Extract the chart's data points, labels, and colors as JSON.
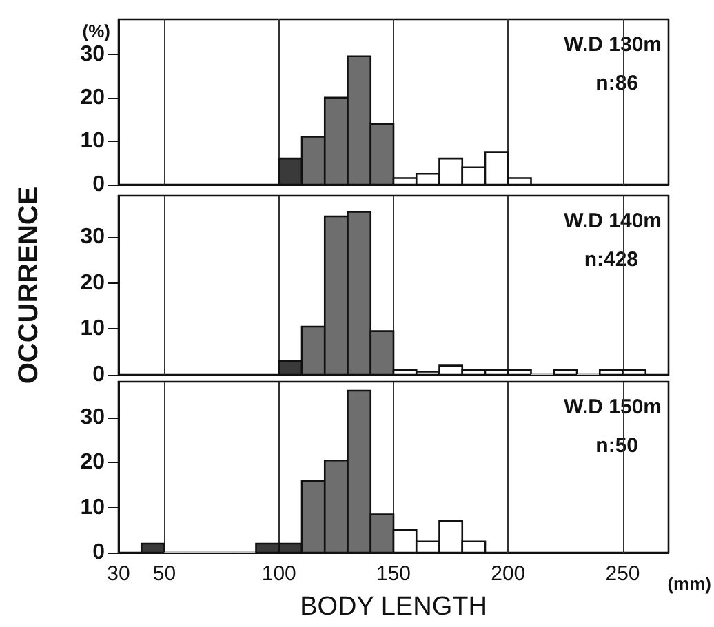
{
  "chart_data": [
    {
      "type": "histogram",
      "ylabel": "(%)",
      "bins": [
        100,
        110,
        120,
        130,
        140,
        150,
        160,
        170,
        180,
        190,
        200,
        210
      ],
      "values": [
        6,
        11,
        20,
        29.5,
        14,
        1.5,
        2.5,
        6,
        4,
        7.5,
        1.5
      ],
      "colors": [
        "#3a3a3a",
        "#6e6e6e",
        "#6e6e6e",
        "#6e6e6e",
        "#6e6e6e",
        "#ffffff",
        "#ffffff",
        "#ffffff",
        "#ffffff",
        "#ffffff",
        "#ffffff"
      ],
      "xlim": [
        30,
        270
      ],
      "xticks": [
        30,
        50,
        100,
        150,
        200,
        250
      ],
      "ylim": [
        0,
        38
      ],
      "yticks": [
        0,
        10,
        20,
        30
      ],
      "grid": "x",
      "tick_labels": "y",
      "annotations": [
        "W.D 130m",
        "n:86"
      ]
    },
    {
      "type": "histogram",
      "ylabel": "OCCURRENCE",
      "bins": [
        100,
        110,
        120,
        130,
        140,
        150,
        160,
        170,
        180,
        190,
        200,
        210,
        220,
        230,
        240,
        250,
        260
      ],
      "values": [
        3,
        10.5,
        34.5,
        35.5,
        9.5,
        1,
        0.7,
        2,
        1,
        1,
        1,
        0,
        1,
        0,
        1,
        1
      ],
      "colors": [
        "#3a3a3a",
        "#6e6e6e",
        "#6e6e6e",
        "#6e6e6e",
        "#6e6e6e",
        "#ffffff",
        "#ffffff",
        "#ffffff",
        "#ffffff",
        "#ffffff",
        "#ffffff",
        "#ffffff",
        "#ffffff",
        "#ffffff",
        "#ffffff",
        "#ffffff"
      ],
      "xlim": [
        30,
        270
      ],
      "xticks": [
        30,
        50,
        100,
        150,
        200,
        250
      ],
      "ylim": [
        0,
        39
      ],
      "yticks": [
        0,
        10,
        20,
        30
      ],
      "grid": "x",
      "tick_labels": "y",
      "annotations": [
        "W.D 140m",
        "n:428"
      ]
    },
    {
      "type": "histogram",
      "xlabel": "BODY LENGTH",
      "bins": [
        40,
        50,
        60,
        70,
        80,
        90,
        100,
        110,
        120,
        130,
        140,
        150,
        160,
        170,
        180,
        190
      ],
      "values": [
        2,
        0,
        0,
        0,
        0,
        2,
        2,
        16,
        20.5,
        36,
        8.5,
        5,
        2.5,
        7,
        2.5
      ],
      "colors": [
        "#3a3a3a",
        "#ffffff",
        "#ffffff",
        "#ffffff",
        "#ffffff",
        "#3a3a3a",
        "#3a3a3a",
        "#6e6e6e",
        "#6e6e6e",
        "#6e6e6e",
        "#6e6e6e",
        "#ffffff",
        "#ffffff",
        "#ffffff",
        "#ffffff"
      ],
      "xlim": [
        30,
        270
      ],
      "xticks": [
        30,
        50,
        100,
        150,
        200,
        250
      ],
      "ylim": [
        0,
        38
      ],
      "yticks": [
        0,
        10,
        20,
        30
      ],
      "grid": "x",
      "annotations": [
        "W.D 150m",
        "n:50",
        "(mm)"
      ]
    }
  ]
}
